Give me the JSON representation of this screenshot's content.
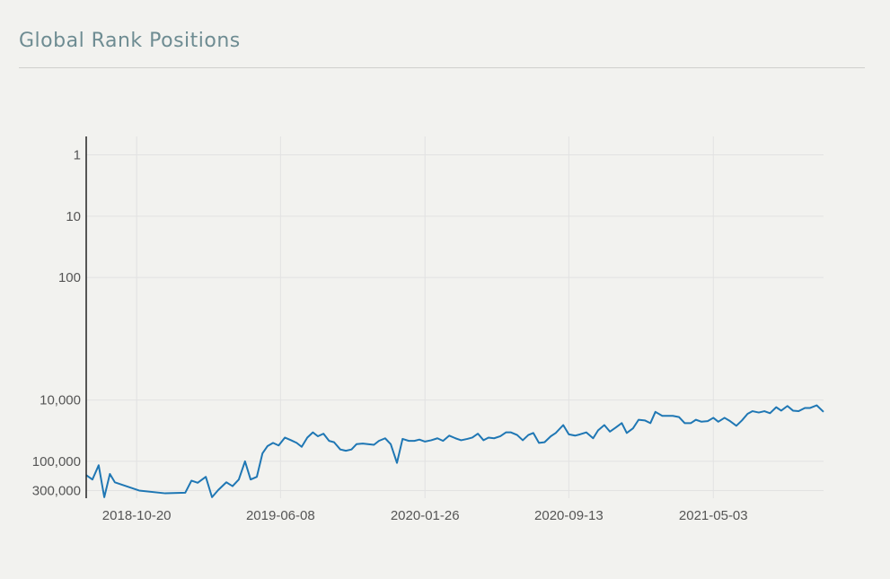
{
  "chart_data": {
    "type": "line",
    "title": "Global Rank Positions",
    "x": [
      "2018-07-31",
      "2018-08-10",
      "2018-08-20",
      "2018-08-29",
      "2018-09-07",
      "2018-09-15",
      "2018-10-24",
      "2018-12-05",
      "2019-01-06",
      "2019-01-16",
      "2019-01-26",
      "2019-02-08",
      "2019-02-18",
      "2019-02-28",
      "2019-03-13",
      "2019-03-23",
      "2019-04-02",
      "2019-04-12",
      "2019-04-21",
      "2019-05-01",
      "2019-05-10",
      "2019-05-18",
      "2019-05-27",
      "2019-06-05",
      "2019-06-15",
      "2019-06-25",
      "2019-07-04",
      "2019-07-12",
      "2019-07-21",
      "2019-07-30",
      "2019-08-07",
      "2019-08-16",
      "2019-08-25",
      "2019-09-02",
      "2019-09-12",
      "2019-09-21",
      "2019-09-30",
      "2019-10-08",
      "2019-10-18",
      "2019-11-05",
      "2019-11-13",
      "2019-11-23",
      "2019-12-02",
      "2019-12-12",
      "2019-12-21",
      "2019-12-31",
      "2020-01-09",
      "2020-01-17",
      "2020-01-26",
      "2020-02-05",
      "2020-02-15",
      "2020-02-24",
      "2020-03-05",
      "2020-03-15",
      "2020-03-24",
      "2020-04-03",
      "2020-04-11",
      "2020-04-20",
      "2020-04-29",
      "2020-05-07",
      "2020-05-16",
      "2020-05-26",
      "2020-06-04",
      "2020-06-12",
      "2020-06-22",
      "2020-07-01",
      "2020-07-10",
      "2020-07-18",
      "2020-07-27",
      "2020-08-05",
      "2020-08-15",
      "2020-08-23",
      "2020-09-04",
      "2020-09-13",
      "2020-09-23",
      "2020-10-01",
      "2020-10-11",
      "2020-10-22",
      "2020-10-30",
      "2020-11-09",
      "2020-11-18",
      "2020-11-27",
      "2020-12-07",
      "2020-12-15",
      "2020-12-25",
      "2021-01-03",
      "2021-01-13",
      "2021-01-22",
      "2021-01-30",
      "2021-02-10",
      "2021-02-18",
      "2021-02-27",
      "2021-03-09",
      "2021-03-18",
      "2021-03-28",
      "2021-04-05",
      "2021-04-14",
      "2021-04-24",
      "2021-05-03",
      "2021-05-11",
      "2021-05-21",
      "2021-05-30",
      "2021-06-09",
      "2021-06-18",
      "2021-06-27",
      "2021-07-05",
      "2021-07-15",
      "2021-07-24",
      "2021-08-02",
      "2021-08-12",
      "2021-08-20",
      "2021-08-30",
      "2021-09-08",
      "2021-09-17",
      "2021-09-27",
      "2021-10-05",
      "2021-10-16",
      "2021-10-27"
    ],
    "values": [
      168000,
      198000,
      116000,
      385000,
      161000,
      220000,
      300000,
      333000,
      326000,
      207000,
      224000,
      179000,
      385000,
      294000,
      220000,
      254000,
      198000,
      100000,
      198000,
      179000,
      74300,
      56600,
      50000,
      55200,
      41000,
      45300,
      50000,
      58000,
      41000,
      33700,
      39000,
      35400,
      46400,
      48800,
      64000,
      67300,
      64000,
      52500,
      51300,
      53800,
      46400,
      42100,
      52500,
      106000,
      43100,
      46400,
      46400,
      44200,
      47600,
      45300,
      42100,
      46400,
      38100,
      42100,
      45300,
      43100,
      41000,
      35400,
      45300,
      41000,
      42100,
      39000,
      33700,
      33700,
      37200,
      45300,
      37200,
      34500,
      50000,
      48800,
      39000,
      34500,
      25600,
      36300,
      38100,
      36300,
      33700,
      42100,
      31200,
      25600,
      32800,
      28300,
      23800,
      34500,
      29000,
      21000,
      21500,
      23800,
      15600,
      18100,
      18100,
      18100,
      19000,
      23800,
      23800,
      21000,
      22600,
      22100,
      19500,
      22600,
      19500,
      22100,
      26300,
      21500,
      16800,
      15200,
      16000,
      15200,
      16400,
      13100,
      14900,
      12500,
      14900,
      15200,
      13500,
      13500,
      12200,
      15600
    ],
    "color": "#1f77b4",
    "xlim": [
      "2018-07-31",
      "2021-10-27"
    ],
    "xticks": [
      "2018-10-20",
      "2019-06-08",
      "2020-01-26",
      "2020-09-13",
      "2021-05-03"
    ],
    "yscale": "log",
    "yreversed": true,
    "ylim": [
      0.5,
      400000
    ],
    "yticks": [
      1,
      10,
      100,
      {
        "value": 10000,
        "label": "10,000"
      },
      {
        "value": 100000,
        "label": "100,000"
      },
      {
        "value": 300000,
        "label": "300,000"
      }
    ],
    "grid": true
  }
}
